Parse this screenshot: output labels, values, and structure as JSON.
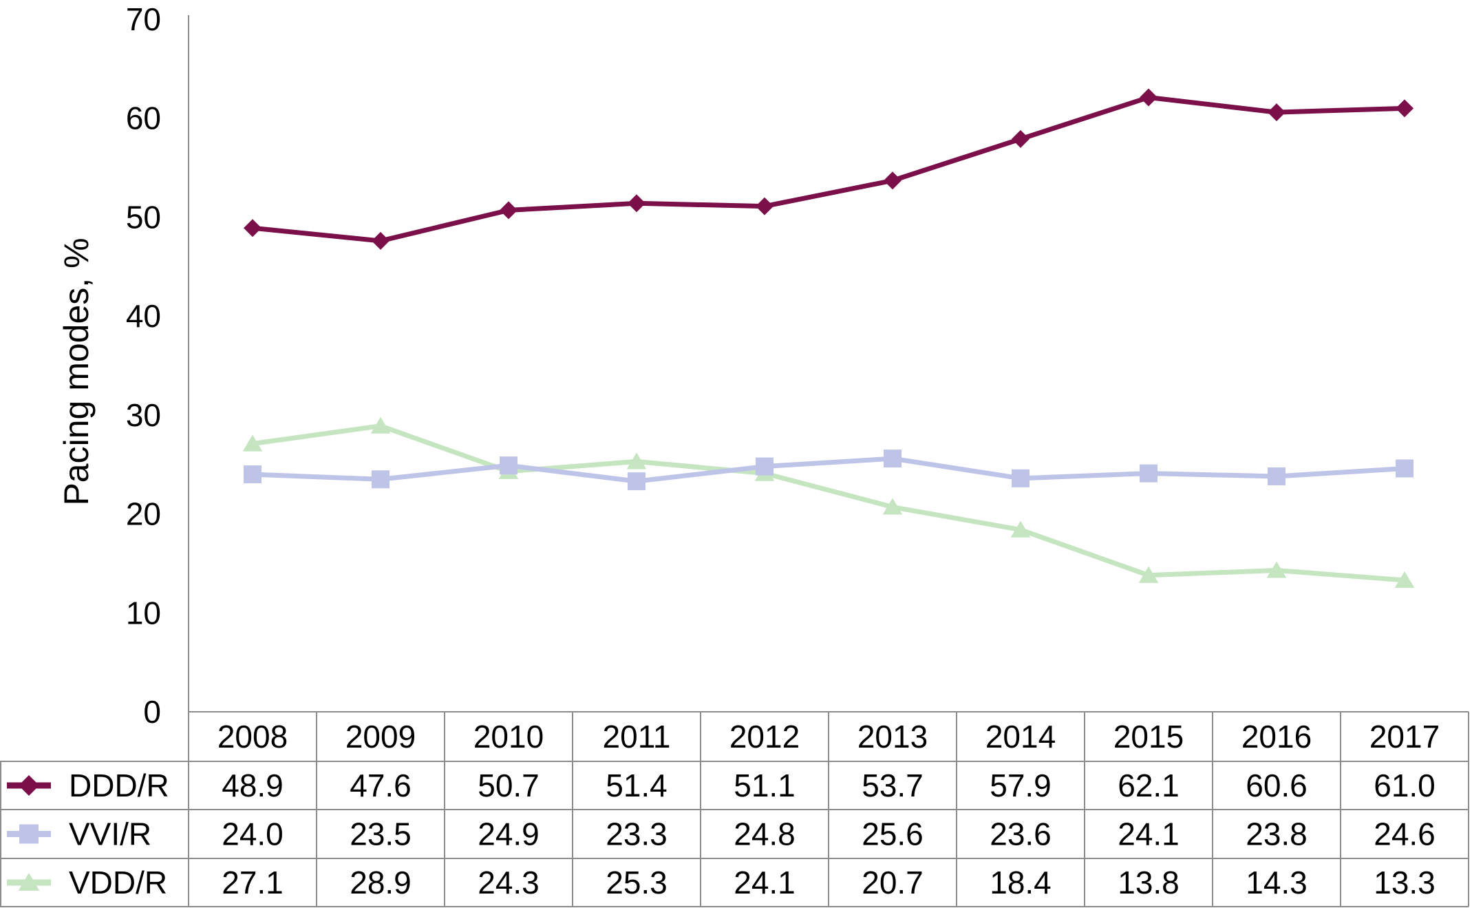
{
  "chart_data": {
    "type": "line",
    "ylabel": "Pacing modes, %",
    "xlabel": "",
    "ylim": [
      0,
      70
    ],
    "yticks": [
      0,
      10,
      20,
      30,
      40,
      50,
      60,
      70
    ],
    "grid": false,
    "legend": "data table (left column)",
    "categories": [
      "2008",
      "2009",
      "2010",
      "2011",
      "2012",
      "2013",
      "2014",
      "2015",
      "2016",
      "2017"
    ],
    "series": [
      {
        "name": "DDD/R",
        "color": "#7b0f4a",
        "marker": "diamond",
        "values": [
          48.9,
          47.6,
          50.7,
          51.4,
          51.1,
          53.7,
          57.9,
          62.1,
          60.6,
          61.0
        ],
        "labels": [
          "48.9",
          "47.6",
          "50.7",
          "51.4",
          "51.1",
          "53.7",
          "57.9",
          "62.1",
          "60.6",
          "61.0"
        ]
      },
      {
        "name": "VVI/R",
        "color": "#bec3e8",
        "marker": "square",
        "values": [
          24.0,
          23.5,
          24.9,
          23.3,
          24.8,
          25.6,
          23.6,
          24.1,
          23.8,
          24.6
        ],
        "labels": [
          "24.0",
          "23.5",
          "24.9",
          "23.3",
          "24.8",
          "25.6",
          "23.6",
          "24.1",
          "23.8",
          "24.6"
        ]
      },
      {
        "name": "VDD/R",
        "color": "#c4e5c0",
        "marker": "triangle",
        "values": [
          27.1,
          28.9,
          24.3,
          25.3,
          24.1,
          20.7,
          18.4,
          13.8,
          14.3,
          13.3
        ],
        "labels": [
          "27.1",
          "28.9",
          "24.3",
          "25.3",
          "24.1",
          "20.7",
          "18.4",
          "13.8",
          "14.3",
          "13.3"
        ]
      }
    ]
  }
}
